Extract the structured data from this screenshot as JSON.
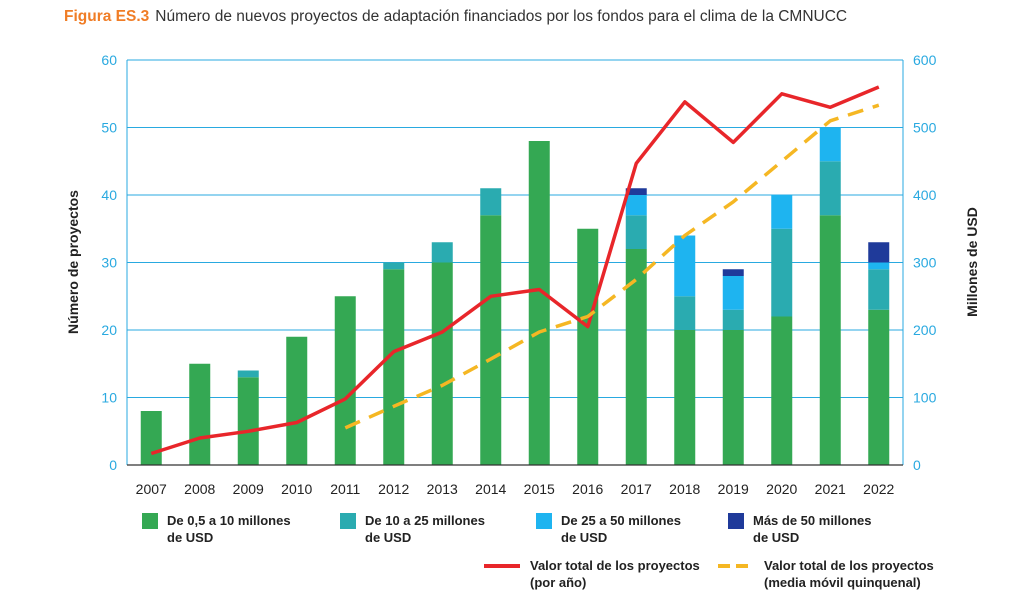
{
  "figure": {
    "prefix": "Figura ES.3",
    "title": "Número de nuevos proyectos de adaptación financiados por los fondos para el clima de la CMNUCC"
  },
  "colors": {
    "band1": "#34a853",
    "band2": "#2aabb0",
    "band3": "#1eb4f0",
    "band4": "#1f3a9a",
    "total_line": "#e8262a",
    "moving_avg": "#f5b723",
    "grid": "#29a9e0",
    "left_axis_text": "#222222",
    "right_axis_text": "#29a9e0"
  },
  "chart_data": {
    "type": "bar",
    "stacked": true,
    "title": "",
    "categories": [
      "2007",
      "2008",
      "2009",
      "2010",
      "2011",
      "2012",
      "2013",
      "2014",
      "2015",
      "2016",
      "2017",
      "2018",
      "2019",
      "2020",
      "2021",
      "2022"
    ],
    "ylabel": "Número de proyectos",
    "y2label": "Millones de USD",
    "ylim": [
      0,
      60
    ],
    "y2lim": [
      0,
      600
    ],
    "yticks": [
      0,
      10,
      20,
      30,
      40,
      50,
      60
    ],
    "y2ticks": [
      0,
      100,
      200,
      300,
      400,
      500,
      600
    ],
    "grid": true,
    "series": [
      {
        "name": "De 0,5 a 10 millones\nde USD",
        "type": "bar",
        "values": [
          8,
          15,
          13,
          19,
          25,
          29,
          30,
          37,
          48,
          35,
          32,
          20,
          20,
          22,
          37,
          23
        ]
      },
      {
        "name": "De 10 a 25 millones\nde USD",
        "type": "bar",
        "values": [
          0,
          0,
          1,
          0,
          0,
          1,
          3,
          4,
          0,
          0,
          5,
          5,
          3,
          13,
          8,
          6
        ]
      },
      {
        "name": "De 25 a 50 millones\nde USD",
        "type": "bar",
        "values": [
          0,
          0,
          0,
          0,
          0,
          0,
          0,
          0,
          0,
          0,
          3,
          9,
          5,
          5,
          5,
          1
        ]
      },
      {
        "name": "Más de 50 millones\nde USD",
        "type": "bar",
        "values": [
          0,
          0,
          0,
          0,
          0,
          0,
          0,
          0,
          0,
          0,
          1,
          0,
          1,
          0,
          0,
          3
        ]
      },
      {
        "name": "Valor total de los proyectos\n(por año)",
        "type": "line",
        "axis": "right",
        "values": [
          17,
          40,
          50,
          63,
          98,
          168,
          197,
          250,
          260,
          205,
          447,
          538,
          478,
          550,
          530,
          560
        ]
      },
      {
        "name": "Valor total de los proyectos\n(media móvil quinquenal)",
        "type": "line",
        "axis": "right",
        "dashed": true,
        "values": [
          null,
          null,
          null,
          null,
          55,
          87,
          118,
          157,
          197,
          220,
          275,
          340,
          390,
          450,
          510,
          533
        ]
      }
    ]
  }
}
